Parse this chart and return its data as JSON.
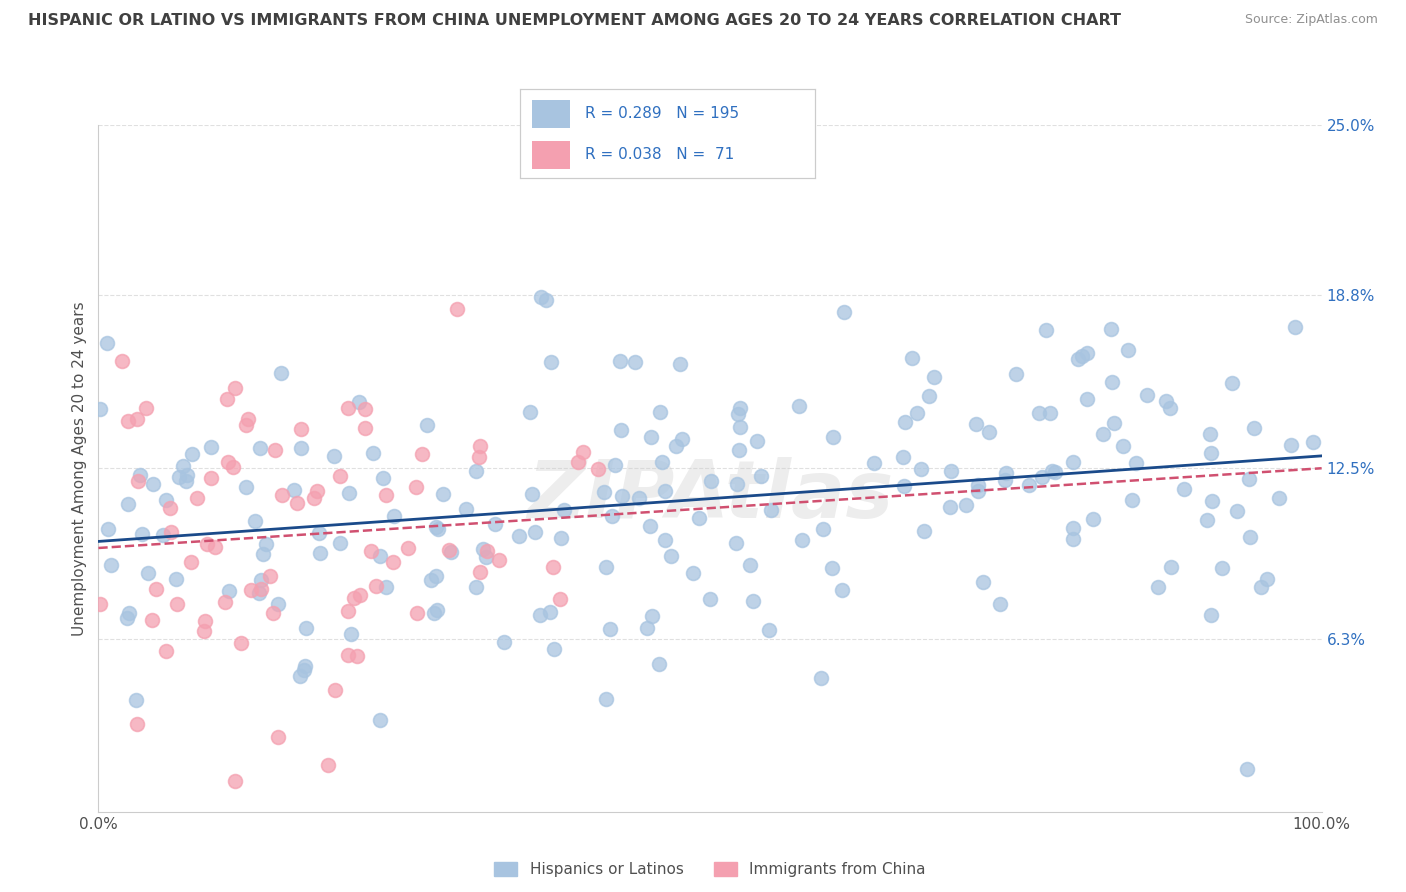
{
  "title": "HISPANIC OR LATINO VS IMMIGRANTS FROM CHINA UNEMPLOYMENT AMONG AGES 20 TO 24 YEARS CORRELATION CHART",
  "source": "Source: ZipAtlas.com",
  "ylabel": "Unemployment Among Ages 20 to 24 years",
  "xmin": 0.0,
  "xmax": 100.0,
  "ymin": 0.0,
  "ymax": 25.0,
  "right_ytick_vals": [
    6.3,
    12.5,
    18.8,
    25.0
  ],
  "right_yticklabels": [
    "6.3%",
    "12.5%",
    "18.8%",
    "25.0%"
  ],
  "blue_R": 0.289,
  "blue_N": 195,
  "pink_R": 0.038,
  "pink_N": 71,
  "blue_color": "#A8C4E0",
  "pink_color": "#F4A0B0",
  "blue_line_color": "#1A4A8A",
  "pink_line_color": "#D05070",
  "legend_label_blue": "Hispanics or Latinos",
  "legend_label_pink": "Immigrants from China",
  "watermark": "ZIPAtlas",
  "title_color": "#404040",
  "source_color": "#909090",
  "background_color": "#FFFFFF",
  "grid_color": "#E0E0E0",
  "right_tick_color": "#3070C0",
  "blue_x_mean": 55,
  "blue_x_std": 27,
  "blue_y_intercept": 10.2,
  "blue_y_slope": 0.028,
  "blue_y_scatter": 3.2,
  "pink_x_mean": 15,
  "pink_x_std": 12,
  "pink_y_intercept": 10.8,
  "pink_y_slope": 0.005,
  "pink_y_scatter": 4.2,
  "seed_blue": 7,
  "seed_pink": 13
}
